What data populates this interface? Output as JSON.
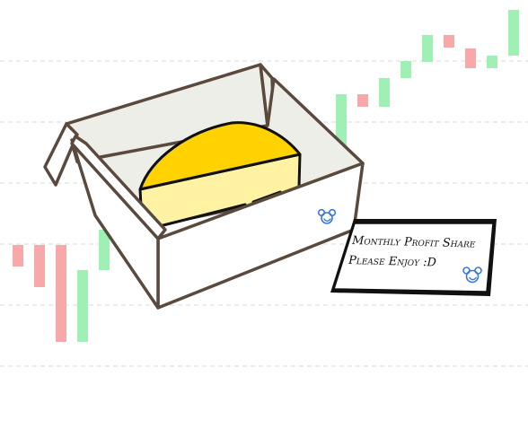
{
  "background": {
    "candles": [
      {
        "trend": "down"
      },
      {
        "trend": "down"
      },
      {
        "trend": "down"
      },
      {
        "trend": "up"
      },
      {
        "trend": "up"
      },
      {
        "trend": "up"
      },
      {
        "trend": "up"
      },
      {
        "trend": "down"
      },
      {
        "trend": "up"
      },
      {
        "trend": "up"
      },
      {
        "trend": "up"
      },
      {
        "trend": "down"
      },
      {
        "trend": "down"
      },
      {
        "trend": "up"
      },
      {
        "trend": "up"
      }
    ],
    "colors": {
      "up": "#9ff0b5",
      "down": "#f7a9a9",
      "grid": "#d9d9d9"
    }
  },
  "box": {
    "colors": {
      "outline": "#5a4a3e",
      "inner": "#eeeee9",
      "outer": "#ffffff"
    }
  },
  "cake": {
    "colors": {
      "top": "#ffd200",
      "side": "#fff3a3",
      "outline": "#111111"
    }
  },
  "card": {
    "line1": "Monthly Profit Share",
    "line2": "Please Enjoy :D",
    "colors": {
      "shadow": "#111111",
      "paper": "#ffffff"
    }
  },
  "icons": {
    "seal": "mickey-seal-icon",
    "seal_color": "#3a78d8"
  }
}
